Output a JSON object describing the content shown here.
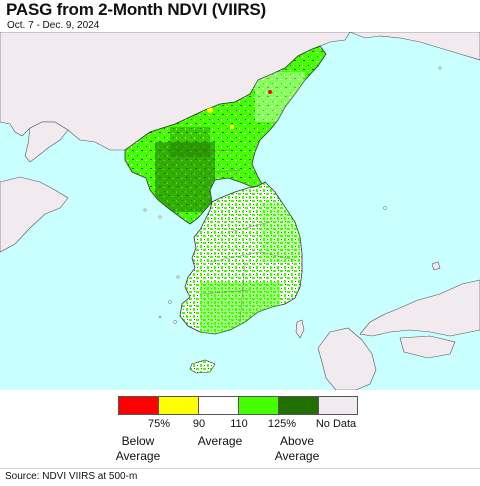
{
  "title": "PASG from 2-Month NDVI (VIIRS)",
  "subtitle": "Oct. 7 - Dec. 9, 2024",
  "colors": {
    "ocean": "#c9ffff",
    "foreign_land": "#f1ebef",
    "below_average": "#ff0000",
    "near_below": "#ffff00",
    "average": "#ffffff",
    "above_average": "#44ff00",
    "well_above": "#1f7000",
    "no_data": "#f1ebef"
  },
  "legend": {
    "swatches": [
      {
        "name": "below-average-swatch",
        "color": "#ff0000"
      },
      {
        "name": "slightly-below-swatch",
        "color": "#ffff00"
      },
      {
        "name": "average-swatch",
        "color": "#ffffff"
      },
      {
        "name": "slightly-above-swatch",
        "color": "#44ff00"
      },
      {
        "name": "above-average-swatch",
        "color": "#1f7000"
      },
      {
        "name": "no-data-swatch",
        "color": "#f1ebef"
      }
    ],
    "ticks": [
      "75%",
      "90",
      "110",
      "125%"
    ],
    "labels": {
      "below": "Below\nAverage",
      "average": "Average",
      "above": "Above\nAverage",
      "no_data": "No Data"
    }
  },
  "source": "Source: NDVI VIIRS at 500-m"
}
